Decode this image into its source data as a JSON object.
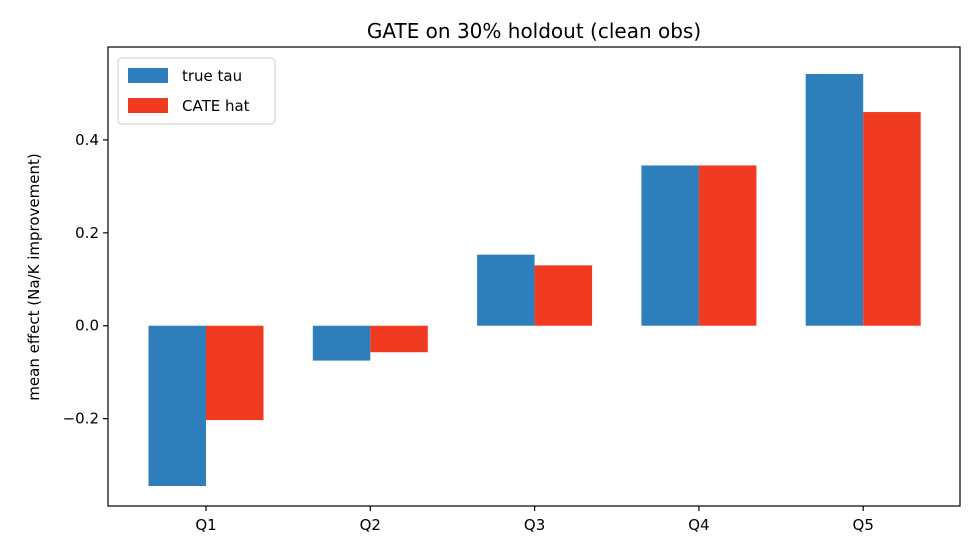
{
  "chart_data": {
    "type": "bar",
    "title": "GATE on 30% holdout (clean obs)",
    "xlabel": "",
    "ylabel": "mean effect (Na/K improvement)",
    "categories": [
      "Q1",
      "Q2",
      "Q3",
      "Q4",
      "Q5"
    ],
    "series": [
      {
        "name": "true tau",
        "color": "#2e7ebb",
        "values": [
          -0.345,
          -0.075,
          0.153,
          0.345,
          0.542
        ]
      },
      {
        "name": "CATE hat",
        "color": "#f03b20",
        "values": [
          -0.203,
          -0.057,
          0.13,
          0.345,
          0.46
        ]
      }
    ],
    "ylim": [
      -0.388,
      0.6
    ],
    "yticks": [
      -0.2,
      0.0,
      0.2,
      0.4
    ],
    "ytick_labels": [
      "−0.2",
      "0.0",
      "0.2",
      "0.4"
    ],
    "legend_position": "top-left",
    "grid": false
  }
}
